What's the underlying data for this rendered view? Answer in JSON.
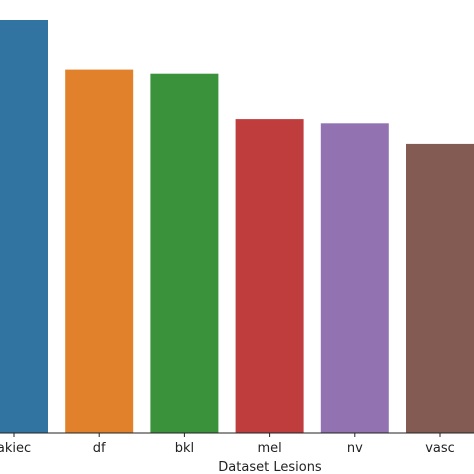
{
  "chart_data": {
    "type": "bar",
    "categories": [
      "akiec",
      "df",
      "bkl",
      "mel",
      "nv",
      "vasc"
    ],
    "values": [
      1.0,
      0.88,
      0.87,
      0.76,
      0.75,
      0.7
    ],
    "colors": [
      "#3274a1",
      "#e1812c",
      "#3a923a",
      "#c03d3e",
      "#9372b2",
      "#845b53",
      "#d684bd"
    ],
    "title": "",
    "xlabel": "Dataset Lesions",
    "ylabel": "",
    "ylim": [
      0,
      1.0
    ],
    "grid": false,
    "legend": "none"
  }
}
